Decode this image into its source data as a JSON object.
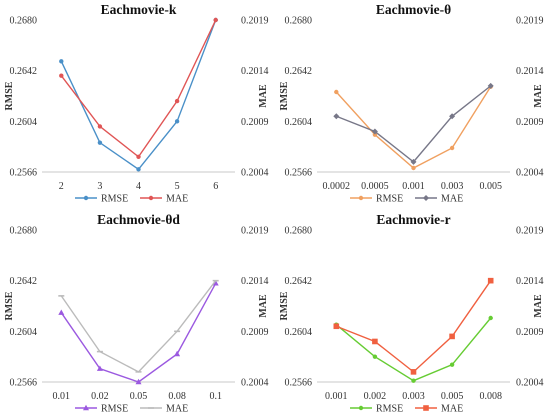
{
  "chart_data": [
    {
      "type": "line",
      "title": "Eachmovie-k",
      "categories": [
        "2",
        "3",
        "4",
        "5",
        "6"
      ],
      "ylabel": "RMSE",
      "ylabel_right": "MAE",
      "ylim": [
        0.2566,
        0.268
      ],
      "yticks": [
        "0.2566",
        "0.2604",
        "0.2642",
        "0.2680"
      ],
      "ylim_right": [
        0.2004,
        0.2019
      ],
      "yticks_right": [
        "0.2004",
        "0.2009",
        "0.2014",
        "0.2019"
      ],
      "grid": false,
      "legend": "bottom",
      "series": [
        {
          "name": "RMSE",
          "axis": "left",
          "color": "#4a90c8",
          "marker": "circle",
          "values": [
            0.2649,
            0.2588,
            0.2568,
            0.2604,
            0.268
          ]
        },
        {
          "name": "MAE",
          "axis": "right",
          "color": "#e05555",
          "marker": "circle",
          "values": [
            0.20135,
            0.20085,
            0.20055,
            0.2011,
            0.2019
          ]
        }
      ]
    },
    {
      "type": "line",
      "title": "Eachmovie-θ",
      "categories": [
        "0.0002",
        "0.0005",
        "0.001",
        "0.003",
        "0.005"
      ],
      "ylabel": "RMSE",
      "ylabel_right": "MAE",
      "ylim": [
        0.2566,
        0.268
      ],
      "yticks": [
        "0.2566",
        "0.2604",
        "0.2642",
        "0.2680"
      ],
      "ylim_right": [
        0.2004,
        0.2019
      ],
      "yticks_right": [
        "0.2004",
        "0.2009",
        "0.2014",
        "0.2019"
      ],
      "grid": false,
      "legend": "bottom",
      "series": [
        {
          "name": "RMSE",
          "axis": "left",
          "color": "#f0a060",
          "marker": "circle",
          "values": [
            0.2626,
            0.2594,
            0.2569,
            0.2584,
            0.263
          ]
        },
        {
          "name": "MAE",
          "axis": "right",
          "color": "#777788",
          "marker": "diamond",
          "values": [
            0.20095,
            0.2008,
            0.2005,
            0.20095,
            0.20125
          ]
        }
      ]
    },
    {
      "type": "line",
      "title": "Eachmovie-θd",
      "categories": [
        "0.01",
        "0.02",
        "0.05",
        "0.08",
        "0.1"
      ],
      "ylabel": "RMSE",
      "ylabel_right": "MAE",
      "ylim": [
        0.2566,
        0.268
      ],
      "yticks": [
        "0.2566",
        "0.2604",
        "0.2642",
        "0.2680"
      ],
      "ylim_right": [
        0.2004,
        0.2019
      ],
      "yticks_right": [
        "0.2004",
        "0.2009",
        "0.2014",
        "0.2019"
      ],
      "grid": false,
      "legend": "bottom",
      "series": [
        {
          "name": "RMSE",
          "axis": "left",
          "color": "#9b59e0",
          "marker": "triangle",
          "values": [
            0.2618,
            0.2576,
            0.2566,
            0.2587,
            0.264
          ]
        },
        {
          "name": "MAE",
          "axis": "right",
          "color": "#bbbbbb",
          "marker": "dash",
          "values": [
            0.20125,
            0.2007,
            0.2005,
            0.2009,
            0.2014
          ]
        }
      ]
    },
    {
      "type": "line",
      "title": "Eachmovie-r",
      "categories": [
        "0.001",
        "0.002",
        "0.003",
        "0.005",
        "0.008"
      ],
      "ylabel": "RMSE",
      "ylabel_right": "MAE",
      "ylim": [
        0.2566,
        0.268
      ],
      "yticks": [
        "0.2566",
        "0.2604",
        "0.2642",
        "0.2680"
      ],
      "ylim_right": [
        0.2004,
        0.2019
      ],
      "yticks_right": [
        "0.2004",
        "0.2009",
        "0.2014",
        "0.2019"
      ],
      "grid": false,
      "legend": "bottom",
      "series": [
        {
          "name": "RMSE",
          "axis": "left",
          "color": "#66cc33",
          "marker": "circle",
          "values": [
            0.2609,
            0.2585,
            0.2567,
            0.2579,
            0.2614
          ]
        },
        {
          "name": "MAE",
          "axis": "right",
          "color": "#f06040",
          "marker": "square",
          "values": [
            0.20095,
            0.2008,
            0.2005,
            0.20085,
            0.2014
          ]
        }
      ]
    }
  ]
}
